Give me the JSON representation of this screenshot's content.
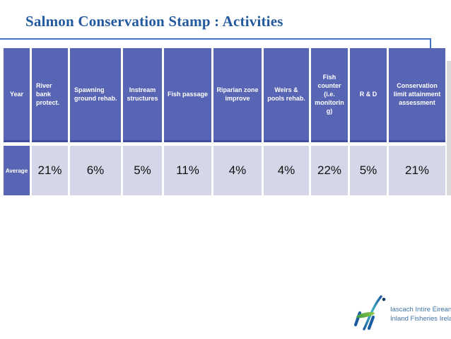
{
  "title": "Salmon Conservation Stamp : Activities",
  "table": {
    "columns": [
      {
        "label": "Year"
      },
      {
        "label": "River bank protect."
      },
      {
        "label": "Spawning ground rehab."
      },
      {
        "label": "Instream structures"
      },
      {
        "label": "Fish passage"
      },
      {
        "label": "Riparian zone improve"
      },
      {
        "label": "Weirs & pools rehab."
      },
      {
        "label": "Fish counter (i.e. monitoring)"
      },
      {
        "label": "R & D"
      },
      {
        "label": "Conservation limit attainment assessment"
      }
    ],
    "rows": [
      {
        "label": "Average",
        "values": [
          "21%",
          "6%",
          "5%",
          "11%",
          "4%",
          "4%",
          "22%",
          "5%",
          "21%"
        ]
      }
    ]
  },
  "logo": {
    "org_irish": "Iascach Intíre Éireann",
    "org_english": "Inland Fisheries Ireland"
  },
  "colors": {
    "header_fill": "#5864B4",
    "header_edge": "#414CA2",
    "cell_fill": "#D5D7E9",
    "title_blue": "#235A9F",
    "rule_blue": "#4472C4",
    "logo_green": "#55B14B",
    "logo_blue": "#1D5E9E",
    "logo_teal": "#45B5C8",
    "logo_text_blue": "#3F74A6"
  }
}
